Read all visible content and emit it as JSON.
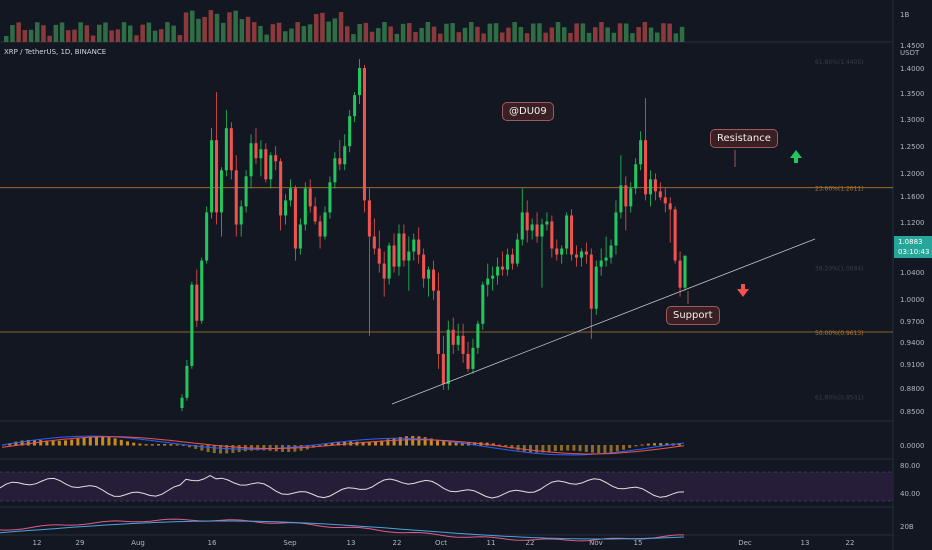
{
  "symbol": {
    "text": "XRP / TetherUS, 1D, BINANCE"
  },
  "colors": {
    "background": "#131722",
    "up": "#26a69a",
    "up_bright": "#22c55e",
    "down": "#ef5350",
    "fib_line": "#b07a2a",
    "trendline": "#c0c3cc",
    "rsi_band": "#2a1f3d",
    "rsi_line": "#e0e0e0",
    "macd_line": "#2962ff",
    "signal_line": "#ff6d00",
    "histogram": "#b8860b"
  },
  "callouts": {
    "watermark": "@DU09",
    "resistance": "Resistance",
    "support": "Support"
  },
  "price_badge": {
    "price": "1.0883",
    "countdown": "03:10:43"
  },
  "chart_data": {
    "type": "candlestick",
    "y_axis": {
      "ticks": [
        "1.4500",
        "1.4000",
        "1.3500",
        "1.3000",
        "1.2500",
        "1.2000",
        "1.1600",
        "1.1200",
        "1.0800",
        "1.0400",
        "1.0000",
        "0.9700",
        "0.9400",
        "0.9100",
        "0.8800",
        "0.8500"
      ],
      "unit": "USDT"
    },
    "x_axis": {
      "ticks": [
        "12",
        "29",
        "Aug",
        "16",
        "Sep",
        "13",
        "22",
        "Oct",
        "11",
        "22",
        "Nov",
        "15",
        "Dec",
        "13",
        "22"
      ]
    },
    "volume_axis": [
      "1B"
    ],
    "macd_axis": [
      "0.0000"
    ],
    "rsi_axis": [
      "80.00",
      "40.00"
    ],
    "bottom_axis": [
      "20B"
    ],
    "fib_levels": [
      {
        "label": "23.60%(1.2011)",
        "value": 1.2011
      },
      {
        "label": "38.20%(1.0684)",
        "value": 1.0684
      },
      {
        "label": "50.00%(0.9613)",
        "value": 0.9613
      },
      {
        "label": "61.80%(0.8541)",
        "value": 0.8541
      },
      {
        "label": "61.80%(1.4405)",
        "value": 1.4405
      }
    ],
    "trendline": {
      "from": {
        "x": "Sep 20",
        "y": 0.862
      },
      "to": {
        "x": "Dec 3",
        "y": 1.092
      }
    },
    "last_price": 1.0883,
    "ohlc": [
      {
        "o": 0.835,
        "h": 0.858,
        "l": 0.83,
        "c": 0.852
      },
      {
        "o": 0.852,
        "h": 0.915,
        "l": 0.847,
        "c": 0.905
      },
      {
        "o": 0.905,
        "h": 1.045,
        "l": 0.9,
        "c": 1.04
      },
      {
        "o": 1.04,
        "h": 1.065,
        "l": 0.97,
        "c": 0.98
      },
      {
        "o": 0.98,
        "h": 1.085,
        "l": 0.975,
        "c": 1.08
      },
      {
        "o": 1.08,
        "h": 1.17,
        "l": 1.075,
        "c": 1.16
      },
      {
        "o": 1.16,
        "h": 1.3,
        "l": 1.15,
        "c": 1.28
      },
      {
        "o": 1.28,
        "h": 1.36,
        "l": 1.14,
        "c": 1.16
      },
      {
        "o": 1.16,
        "h": 1.235,
        "l": 1.12,
        "c": 1.23
      },
      {
        "o": 1.23,
        "h": 1.33,
        "l": 1.22,
        "c": 1.3
      },
      {
        "o": 1.3,
        "h": 1.31,
        "l": 1.215,
        "c": 1.23
      },
      {
        "o": 1.23,
        "h": 1.255,
        "l": 1.12,
        "c": 1.14
      },
      {
        "o": 1.14,
        "h": 1.18,
        "l": 1.12,
        "c": 1.17
      },
      {
        "o": 1.17,
        "h": 1.23,
        "l": 1.16,
        "c": 1.22
      },
      {
        "o": 1.22,
        "h": 1.29,
        "l": 1.2,
        "c": 1.275
      },
      {
        "o": 1.275,
        "h": 1.3,
        "l": 1.24,
        "c": 1.25
      },
      {
        "o": 1.25,
        "h": 1.28,
        "l": 1.22,
        "c": 1.265
      },
      {
        "o": 1.265,
        "h": 1.275,
        "l": 1.21,
        "c": 1.215
      },
      {
        "o": 1.215,
        "h": 1.26,
        "l": 1.2,
        "c": 1.255
      },
      {
        "o": 1.255,
        "h": 1.27,
        "l": 1.23,
        "c": 1.245
      },
      {
        "o": 1.245,
        "h": 1.25,
        "l": 1.13,
        "c": 1.155
      },
      {
        "o": 1.155,
        "h": 1.19,
        "l": 1.14,
        "c": 1.18
      },
      {
        "o": 1.18,
        "h": 1.215,
        "l": 1.17,
        "c": 1.2
      },
      {
        "o": 1.2,
        "h": 1.205,
        "l": 1.08,
        "c": 1.1
      },
      {
        "o": 1.1,
        "h": 1.15,
        "l": 1.09,
        "c": 1.14
      },
      {
        "o": 1.14,
        "h": 1.21,
        "l": 1.13,
        "c": 1.2
      },
      {
        "o": 1.2,
        "h": 1.215,
        "l": 1.16,
        "c": 1.17
      },
      {
        "o": 1.17,
        "h": 1.185,
        "l": 1.14,
        "c": 1.145
      },
      {
        "o": 1.145,
        "h": 1.155,
        "l": 1.1,
        "c": 1.12
      },
      {
        "o": 1.12,
        "h": 1.17,
        "l": 1.115,
        "c": 1.16
      },
      {
        "o": 1.16,
        "h": 1.22,
        "l": 1.15,
        "c": 1.21
      },
      {
        "o": 1.21,
        "h": 1.26,
        "l": 1.2,
        "c": 1.25
      },
      {
        "o": 1.25,
        "h": 1.28,
        "l": 1.23,
        "c": 1.24
      },
      {
        "o": 1.24,
        "h": 1.29,
        "l": 1.23,
        "c": 1.27
      },
      {
        "o": 1.27,
        "h": 1.33,
        "l": 1.26,
        "c": 1.32
      },
      {
        "o": 1.32,
        "h": 1.36,
        "l": 1.31,
        "c": 1.355
      },
      {
        "o": 1.355,
        "h": 1.415,
        "l": 1.34,
        "c": 1.4
      },
      {
        "o": 1.4,
        "h": 1.405,
        "l": 1.16,
        "c": 1.18
      },
      {
        "o": 1.18,
        "h": 1.2,
        "l": 0.955,
        "c": 1.12
      },
      {
        "o": 1.12,
        "h": 1.15,
        "l": 1.09,
        "c": 1.1
      },
      {
        "o": 1.1,
        "h": 1.13,
        "l": 1.06,
        "c": 1.075
      },
      {
        "o": 1.075,
        "h": 1.095,
        "l": 1.02,
        "c": 1.05
      },
      {
        "o": 1.05,
        "h": 1.11,
        "l": 1.04,
        "c": 1.105
      },
      {
        "o": 1.105,
        "h": 1.125,
        "l": 1.06,
        "c": 1.07
      },
      {
        "o": 1.07,
        "h": 1.14,
        "l": 1.055,
        "c": 1.125
      },
      {
        "o": 1.125,
        "h": 1.14,
        "l": 1.07,
        "c": 1.08
      },
      {
        "o": 1.08,
        "h": 1.12,
        "l": 1.03,
        "c": 1.095
      },
      {
        "o": 1.095,
        "h": 1.125,
        "l": 1.08,
        "c": 1.115
      },
      {
        "o": 1.115,
        "h": 1.135,
        "l": 1.075,
        "c": 1.09
      },
      {
        "o": 1.09,
        "h": 1.1,
        "l": 1.035,
        "c": 1.05
      },
      {
        "o": 1.05,
        "h": 1.07,
        "l": 1.02,
        "c": 1.065
      },
      {
        "o": 1.065,
        "h": 1.08,
        "l": 1.015,
        "c": 1.03
      },
      {
        "o": 1.03,
        "h": 1.06,
        "l": 0.9,
        "c": 0.925
      },
      {
        "o": 0.925,
        "h": 0.955,
        "l": 0.865,
        "c": 0.875
      },
      {
        "o": 0.875,
        "h": 0.98,
        "l": 0.865,
        "c": 0.965
      },
      {
        "o": 0.965,
        "h": 0.985,
        "l": 0.925,
        "c": 0.94
      },
      {
        "o": 0.94,
        "h": 0.975,
        "l": 0.93,
        "c": 0.955
      },
      {
        "o": 0.955,
        "h": 0.975,
        "l": 0.91,
        "c": 0.925
      },
      {
        "o": 0.925,
        "h": 0.945,
        "l": 0.895,
        "c": 0.9
      },
      {
        "o": 0.9,
        "h": 0.95,
        "l": 0.892,
        "c": 0.935
      },
      {
        "o": 0.935,
        "h": 0.98,
        "l": 0.925,
        "c": 0.975
      },
      {
        "o": 0.975,
        "h": 1.045,
        "l": 0.965,
        "c": 1.04
      },
      {
        "o": 1.04,
        "h": 1.075,
        "l": 1.02,
        "c": 1.05
      },
      {
        "o": 1.05,
        "h": 1.07,
        "l": 1.03,
        "c": 1.055
      },
      {
        "o": 1.055,
        "h": 1.085,
        "l": 1.04,
        "c": 1.07
      },
      {
        "o": 1.07,
        "h": 1.095,
        "l": 1.055,
        "c": 1.065
      },
      {
        "o": 1.065,
        "h": 1.1,
        "l": 1.055,
        "c": 1.09
      },
      {
        "o": 1.09,
        "h": 1.1,
        "l": 1.065,
        "c": 1.075
      },
      {
        "o": 1.075,
        "h": 1.125,
        "l": 1.07,
        "c": 1.115
      },
      {
        "o": 1.115,
        "h": 1.2,
        "l": 1.105,
        "c": 1.16
      },
      {
        "o": 1.16,
        "h": 1.18,
        "l": 1.11,
        "c": 1.13
      },
      {
        "o": 1.13,
        "h": 1.15,
        "l": 1.115,
        "c": 1.14
      },
      {
        "o": 1.14,
        "h": 1.16,
        "l": 1.11,
        "c": 1.12
      },
      {
        "o": 1.12,
        "h": 1.15,
        "l": 1.035,
        "c": 1.14
      },
      {
        "o": 1.14,
        "h": 1.16,
        "l": 1.13,
        "c": 1.145
      },
      {
        "o": 1.145,
        "h": 1.155,
        "l": 1.085,
        "c": 1.1
      },
      {
        "o": 1.1,
        "h": 1.115,
        "l": 1.08,
        "c": 1.09
      },
      {
        "o": 1.09,
        "h": 1.105,
        "l": 1.075,
        "c": 1.1
      },
      {
        "o": 1.1,
        "h": 1.16,
        "l": 1.09,
        "c": 1.155
      },
      {
        "o": 1.155,
        "h": 1.165,
        "l": 1.08,
        "c": 1.09
      },
      {
        "o": 1.09,
        "h": 1.105,
        "l": 1.07,
        "c": 1.085
      },
      {
        "o": 1.085,
        "h": 1.1,
        "l": 1.07,
        "c": 1.095
      },
      {
        "o": 1.095,
        "h": 1.11,
        "l": 1.075,
        "c": 1.09
      },
      {
        "o": 1.09,
        "h": 1.1,
        "l": 0.95,
        "c": 1.0
      },
      {
        "o": 1.0,
        "h": 1.08,
        "l": 0.99,
        "c": 1.07
      },
      {
        "o": 1.07,
        "h": 1.1,
        "l": 1.055,
        "c": 1.08
      },
      {
        "o": 1.08,
        "h": 1.12,
        "l": 1.07,
        "c": 1.085
      },
      {
        "o": 1.085,
        "h": 1.115,
        "l": 1.075,
        "c": 1.105
      },
      {
        "o": 1.105,
        "h": 1.18,
        "l": 1.09,
        "c": 1.16
      },
      {
        "o": 1.16,
        "h": 1.255,
        "l": 1.15,
        "c": 1.205
      },
      {
        "o": 1.205,
        "h": 1.22,
        "l": 1.13,
        "c": 1.17
      },
      {
        "o": 1.17,
        "h": 1.21,
        "l": 1.16,
        "c": 1.2
      },
      {
        "o": 1.2,
        "h": 1.25,
        "l": 1.19,
        "c": 1.24
      },
      {
        "o": 1.24,
        "h": 1.295,
        "l": 1.23,
        "c": 1.28
      },
      {
        "o": 1.28,
        "h": 1.35,
        "l": 1.18,
        "c": 1.19
      },
      {
        "o": 1.19,
        "h": 1.23,
        "l": 1.17,
        "c": 1.215
      },
      {
        "o": 1.215,
        "h": 1.225,
        "l": 1.18,
        "c": 1.195
      },
      {
        "o": 1.195,
        "h": 1.21,
        "l": 1.18,
        "c": 1.185
      },
      {
        "o": 1.185,
        "h": 1.2,
        "l": 1.16,
        "c": 1.175
      },
      {
        "o": 1.175,
        "h": 1.185,
        "l": 1.11,
        "c": 1.165
      },
      {
        "o": 1.165,
        "h": 1.17,
        "l": 1.075,
        "c": 1.08
      },
      {
        "o": 1.08,
        "h": 1.095,
        "l": 1.02,
        "c": 1.035
      },
      {
        "o": 1.035,
        "h": 1.085,
        "l": 1.03,
        "c": 1.0883
      }
    ]
  }
}
